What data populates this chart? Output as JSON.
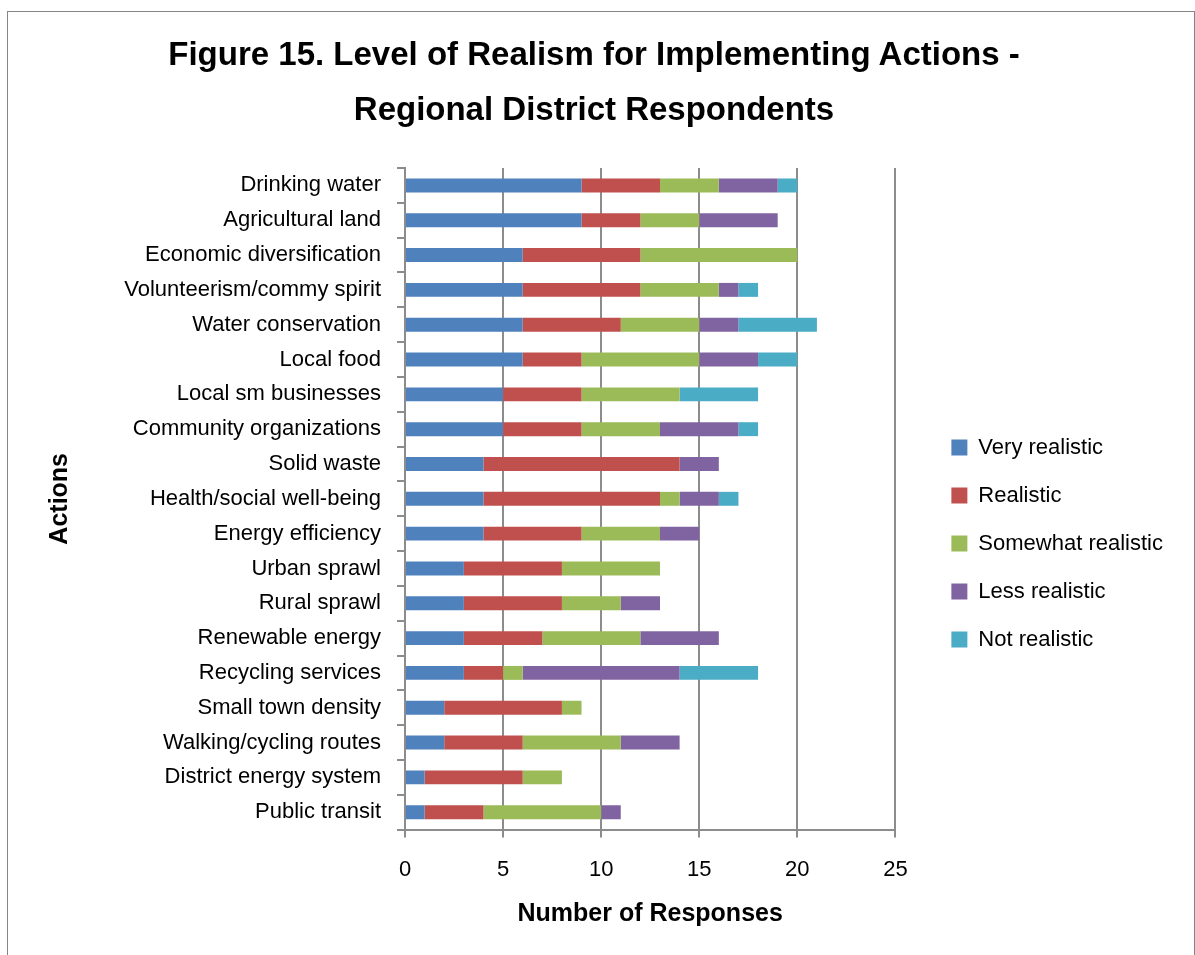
{
  "chart_data": {
    "type": "bar",
    "orientation": "horizontal",
    "stacked": true,
    "title": "Figure 15. Level of Realism for Implementing Actions - Regional District Respondents",
    "xlabel": "Number of Responses",
    "ylabel": "Actions",
    "categories": [
      "Drinking water",
      "Agricultural land",
      "Economic diversification",
      "Volunteerism/commy spirit",
      "Water conservation",
      "Local food",
      "Local sm businesses",
      "Community organizations",
      "Solid waste",
      "Health/social well-being",
      "Energy efficiency",
      "Urban sprawl",
      "Rural sprawl",
      "Renewable energy",
      "Recycling services",
      "Small town density",
      "Walking/cycling routes",
      "District energy system",
      "Public transit"
    ],
    "series": [
      {
        "name": "Very realistic",
        "color": "#4f81bd",
        "values": [
          9,
          9,
          6,
          6,
          6,
          6,
          5,
          5,
          4,
          4,
          4,
          3,
          3,
          3,
          3,
          2,
          2,
          1,
          1
        ]
      },
      {
        "name": "Realistic",
        "color": "#c0504d",
        "values": [
          4,
          3,
          6,
          6,
          5,
          3,
          4,
          4,
          10,
          9,
          5,
          5,
          5,
          4,
          2,
          6,
          4,
          5,
          3
        ]
      },
      {
        "name": "Somewhat realistic",
        "color": "#9bbb59",
        "values": [
          3,
          3,
          8,
          4,
          4,
          6,
          5,
          4,
          0,
          1,
          4,
          5,
          3,
          5,
          1,
          1,
          5,
          2,
          6
        ]
      },
      {
        "name": "Less realistic",
        "color": "#8064a2",
        "values": [
          3,
          4,
          0,
          1,
          2,
          3,
          0,
          4,
          2,
          2,
          2,
          0,
          2,
          4,
          8,
          0,
          3,
          0,
          1
        ]
      },
      {
        "name": "Not realistic",
        "color": "#4bacc6",
        "values": [
          1,
          0,
          0,
          1,
          4,
          2,
          4,
          1,
          0,
          1,
          0,
          0,
          0,
          0,
          4,
          0,
          0,
          0,
          0
        ]
      }
    ],
    "xlim": [
      0,
      25
    ],
    "xticks": [
      0,
      5,
      10,
      15,
      20,
      25
    ],
    "grid": "x",
    "legend": "right"
  }
}
